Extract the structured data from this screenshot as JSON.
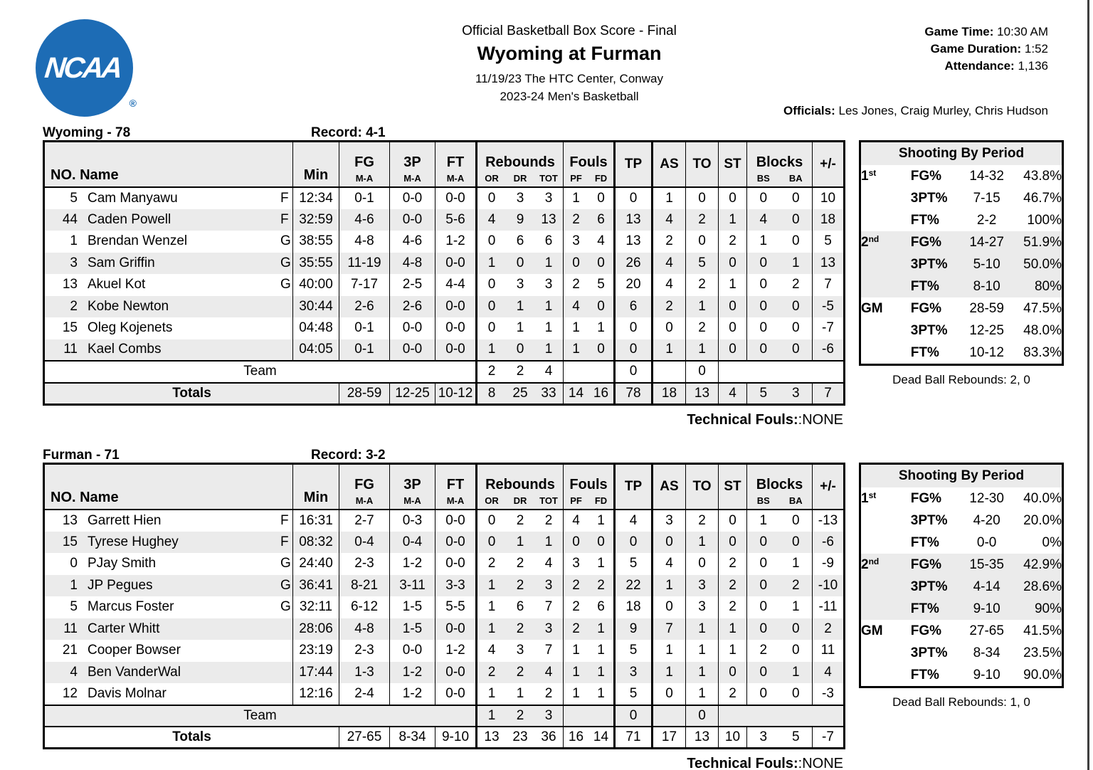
{
  "header": {
    "doc_type": "Official Basketball Box Score - Final",
    "matchup": "Wyoming at Furman",
    "venue": "11/19/23 The HTC Center, Conway",
    "league": "2023-24 Men's Basketball",
    "game_time_label": "Game Time:",
    "game_time": "10:30 AM",
    "game_duration_label": "Game Duration:",
    "game_duration": "1:52",
    "attendance_label": "Attendance:",
    "attendance": "1,136",
    "officials_label": "Officials:",
    "officials": "Les Jones, Craig Murley, Chris Hudson",
    "logo_text": "NCAA",
    "logo_reg": "®",
    "logo_color": "#1d6cb5"
  },
  "table_header": {
    "no_name": "NO. Name",
    "min": "Min",
    "fg": "FG",
    "p3": "3P",
    "ft": "FT",
    "ma": "M-A",
    "rebounds": "Rebounds",
    "or": "OR",
    "dr": "DR",
    "tot": "TOT",
    "fouls": "Fouls",
    "pf": "PF",
    "fd": "FD",
    "tp": "TP",
    "as": "AS",
    "to": "TO",
    "st": "ST",
    "blocks": "Blocks",
    "bs": "BS",
    "ba": "BA",
    "pm": "+/-"
  },
  "teams": [
    {
      "title": "Wyoming - 78",
      "record": "Record: 4-1",
      "players": [
        {
          "no": "5",
          "name": "Cam Manyawu",
          "pos": "F",
          "min": "12:34",
          "fg": "0-1",
          "p3": "0-0",
          "ft": "0-0",
          "or": "0",
          "dr": "3",
          "tot": "3",
          "pf": "1",
          "fd": "0",
          "tp": "0",
          "as": "1",
          "to": "0",
          "st": "0",
          "bs": "0",
          "ba": "0",
          "pm": "10"
        },
        {
          "no": "44",
          "name": "Caden Powell",
          "pos": "F",
          "min": "32:59",
          "fg": "4-6",
          "p3": "0-0",
          "ft": "5-6",
          "or": "4",
          "dr": "9",
          "tot": "13",
          "pf": "2",
          "fd": "6",
          "tp": "13",
          "as": "4",
          "to": "2",
          "st": "1",
          "bs": "4",
          "ba": "0",
          "pm": "18"
        },
        {
          "no": "1",
          "name": "Brendan Wenzel",
          "pos": "G",
          "min": "38:55",
          "fg": "4-8",
          "p3": "4-6",
          "ft": "1-2",
          "or": "0",
          "dr": "6",
          "tot": "6",
          "pf": "3",
          "fd": "4",
          "tp": "13",
          "as": "2",
          "to": "0",
          "st": "2",
          "bs": "1",
          "ba": "0",
          "pm": "5"
        },
        {
          "no": "3",
          "name": "Sam Griffin",
          "pos": "G",
          "min": "35:55",
          "fg": "11-19",
          "p3": "4-8",
          "ft": "0-0",
          "or": "1",
          "dr": "0",
          "tot": "1",
          "pf": "0",
          "fd": "0",
          "tp": "26",
          "as": "4",
          "to": "5",
          "st": "0",
          "bs": "0",
          "ba": "1",
          "pm": "13"
        },
        {
          "no": "13",
          "name": "Akuel Kot",
          "pos": "G",
          "min": "40:00",
          "fg": "7-17",
          "p3": "2-5",
          "ft": "4-4",
          "or": "0",
          "dr": "3",
          "tot": "3",
          "pf": "2",
          "fd": "5",
          "tp": "20",
          "as": "4",
          "to": "2",
          "st": "1",
          "bs": "0",
          "ba": "2",
          "pm": "7"
        },
        {
          "no": "2",
          "name": "Kobe Newton",
          "pos": "",
          "min": "30:44",
          "fg": "2-6",
          "p3": "2-6",
          "ft": "0-0",
          "or": "0",
          "dr": "1",
          "tot": "1",
          "pf": "4",
          "fd": "0",
          "tp": "6",
          "as": "2",
          "to": "1",
          "st": "0",
          "bs": "0",
          "ba": "0",
          "pm": "-5"
        },
        {
          "no": "15",
          "name": "Oleg Kojenets",
          "pos": "",
          "min": "04:48",
          "fg": "0-1",
          "p3": "0-0",
          "ft": "0-0",
          "or": "0",
          "dr": "1",
          "tot": "1",
          "pf": "1",
          "fd": "1",
          "tp": "0",
          "as": "0",
          "to": "2",
          "st": "0",
          "bs": "0",
          "ba": "0",
          "pm": "-7"
        },
        {
          "no": "11",
          "name": "Kael Combs",
          "pos": "",
          "min": "04:05",
          "fg": "0-1",
          "p3": "0-0",
          "ft": "0-0",
          "or": "1",
          "dr": "0",
          "tot": "1",
          "pf": "1",
          "fd": "0",
          "tp": "0",
          "as": "1",
          "to": "1",
          "st": "0",
          "bs": "0",
          "ba": "0",
          "pm": "-6"
        }
      ],
      "team_row": {
        "label": "Team",
        "or": "2",
        "dr": "2",
        "tot": "4",
        "tp": "0",
        "to": "0"
      },
      "totals": {
        "label": "Totals",
        "fg": "28-59",
        "p3": "12-25",
        "ft": "10-12",
        "or": "8",
        "dr": "25",
        "tot": "33",
        "pf": "14",
        "fd": "16",
        "tp": "78",
        "as": "18",
        "to": "13",
        "st": "4",
        "bs": "5",
        "ba": "3",
        "pm": "7"
      },
      "technical_label": "Technical Fouls:",
      "technical_value": ":NONE",
      "shooting": {
        "title": "Shooting By Period",
        "rows": [
          {
            "period": "1",
            "sup": "st",
            "stat": "FG%",
            "ma": "14-32",
            "pct": "43.8%"
          },
          {
            "period": "",
            "sup": "",
            "stat": "3PT%",
            "ma": "7-15",
            "pct": "46.7%"
          },
          {
            "period": "",
            "sup": "",
            "stat": "FT%",
            "ma": "2-2",
            "pct": "100%"
          },
          {
            "period": "2",
            "sup": "nd",
            "stat": "FG%",
            "ma": "14-27",
            "pct": "51.9%"
          },
          {
            "period": "",
            "sup": "",
            "stat": "3PT%",
            "ma": "5-10",
            "pct": "50.0%"
          },
          {
            "period": "",
            "sup": "",
            "stat": "FT%",
            "ma": "8-10",
            "pct": "80%"
          },
          {
            "period": "GM",
            "sup": "",
            "stat": "FG%",
            "ma": "28-59",
            "pct": "47.5%"
          },
          {
            "period": "",
            "sup": "",
            "stat": "3PT%",
            "ma": "12-25",
            "pct": "48.0%"
          },
          {
            "period": "",
            "sup": "",
            "stat": "FT%",
            "ma": "10-12",
            "pct": "83.3%"
          }
        ],
        "dead_ball": "Dead Ball Rebounds: 2, 0"
      }
    },
    {
      "title": "Furman - 71",
      "record": "Record: 3-2",
      "players": [
        {
          "no": "13",
          "name": "Garrett Hien",
          "pos": "F",
          "min": "16:31",
          "fg": "2-7",
          "p3": "0-3",
          "ft": "0-0",
          "or": "0",
          "dr": "2",
          "tot": "2",
          "pf": "4",
          "fd": "1",
          "tp": "4",
          "as": "3",
          "to": "2",
          "st": "0",
          "bs": "1",
          "ba": "0",
          "pm": "-13"
        },
        {
          "no": "15",
          "name": "Tyrese Hughey",
          "pos": "F",
          "min": "08:32",
          "fg": "0-4",
          "p3": "0-4",
          "ft": "0-0",
          "or": "0",
          "dr": "1",
          "tot": "1",
          "pf": "0",
          "fd": "0",
          "tp": "0",
          "as": "0",
          "to": "1",
          "st": "0",
          "bs": "0",
          "ba": "0",
          "pm": "-6"
        },
        {
          "no": "0",
          "name": "PJay Smith",
          "pos": "G",
          "min": "24:40",
          "fg": "2-3",
          "p3": "1-2",
          "ft": "0-0",
          "or": "2",
          "dr": "2",
          "tot": "4",
          "pf": "3",
          "fd": "1",
          "tp": "5",
          "as": "4",
          "to": "0",
          "st": "2",
          "bs": "0",
          "ba": "1",
          "pm": "-9"
        },
        {
          "no": "1",
          "name": "JP Pegues",
          "pos": "G",
          "min": "36:41",
          "fg": "8-21",
          "p3": "3-11",
          "ft": "3-3",
          "or": "1",
          "dr": "2",
          "tot": "3",
          "pf": "2",
          "fd": "2",
          "tp": "22",
          "as": "1",
          "to": "3",
          "st": "2",
          "bs": "0",
          "ba": "2",
          "pm": "-10"
        },
        {
          "no": "5",
          "name": "Marcus Foster",
          "pos": "G",
          "min": "32:11",
          "fg": "6-12",
          "p3": "1-5",
          "ft": "5-5",
          "or": "1",
          "dr": "6",
          "tot": "7",
          "pf": "2",
          "fd": "6",
          "tp": "18",
          "as": "0",
          "to": "3",
          "st": "2",
          "bs": "0",
          "ba": "1",
          "pm": "-11"
        },
        {
          "no": "11",
          "name": "Carter Whitt",
          "pos": "",
          "min": "28:06",
          "fg": "4-8",
          "p3": "1-5",
          "ft": "0-0",
          "or": "1",
          "dr": "2",
          "tot": "3",
          "pf": "2",
          "fd": "1",
          "tp": "9",
          "as": "7",
          "to": "1",
          "st": "1",
          "bs": "0",
          "ba": "0",
          "pm": "2"
        },
        {
          "no": "21",
          "name": "Cooper Bowser",
          "pos": "",
          "min": "23:19",
          "fg": "2-3",
          "p3": "0-0",
          "ft": "1-2",
          "or": "4",
          "dr": "3",
          "tot": "7",
          "pf": "1",
          "fd": "1",
          "tp": "5",
          "as": "1",
          "to": "1",
          "st": "1",
          "bs": "2",
          "ba": "0",
          "pm": "11"
        },
        {
          "no": "4",
          "name": "Ben VanderWal",
          "pos": "",
          "min": "17:44",
          "fg": "1-3",
          "p3": "1-2",
          "ft": "0-0",
          "or": "2",
          "dr": "2",
          "tot": "4",
          "pf": "1",
          "fd": "1",
          "tp": "3",
          "as": "1",
          "to": "1",
          "st": "0",
          "bs": "0",
          "ba": "1",
          "pm": "4"
        },
        {
          "no": "12",
          "name": "Davis Molnar",
          "pos": "",
          "min": "12:16",
          "fg": "2-4",
          "p3": "1-2",
          "ft": "0-0",
          "or": "1",
          "dr": "1",
          "tot": "2",
          "pf": "1",
          "fd": "1",
          "tp": "5",
          "as": "0",
          "to": "1",
          "st": "2",
          "bs": "0",
          "ba": "0",
          "pm": "-3"
        }
      ],
      "team_row": {
        "label": "Team",
        "or": "1",
        "dr": "2",
        "tot": "3",
        "tp": "0",
        "to": "0"
      },
      "totals": {
        "label": "Totals",
        "fg": "27-65",
        "p3": "8-34",
        "ft": "9-10",
        "or": "13",
        "dr": "23",
        "tot": "36",
        "pf": "16",
        "fd": "14",
        "tp": "71",
        "as": "17",
        "to": "13",
        "st": "10",
        "bs": "3",
        "ba": "5",
        "pm": "-7"
      },
      "technical_label": "Technical Fouls:",
      "technical_value": ":NONE",
      "shooting": {
        "title": "Shooting By Period",
        "rows": [
          {
            "period": "1",
            "sup": "st",
            "stat": "FG%",
            "ma": "12-30",
            "pct": "40.0%"
          },
          {
            "period": "",
            "sup": "",
            "stat": "3PT%",
            "ma": "4-20",
            "pct": "20.0%"
          },
          {
            "period": "",
            "sup": "",
            "stat": "FT%",
            "ma": "0-0",
            "pct": "0%"
          },
          {
            "period": "2",
            "sup": "nd",
            "stat": "FG%",
            "ma": "15-35",
            "pct": "42.9%"
          },
          {
            "period": "",
            "sup": "",
            "stat": "3PT%",
            "ma": "4-14",
            "pct": "28.6%"
          },
          {
            "period": "",
            "sup": "",
            "stat": "FT%",
            "ma": "9-10",
            "pct": "90%"
          },
          {
            "period": "GM",
            "sup": "",
            "stat": "FG%",
            "ma": "27-65",
            "pct": "41.5%"
          },
          {
            "period": "",
            "sup": "",
            "stat": "3PT%",
            "ma": "8-34",
            "pct": "23.5%"
          },
          {
            "period": "",
            "sup": "",
            "stat": "FT%",
            "ma": "9-10",
            "pct": "90.0%"
          }
        ],
        "dead_ball": "Dead Ball Rebounds: 1, 0"
      }
    }
  ]
}
